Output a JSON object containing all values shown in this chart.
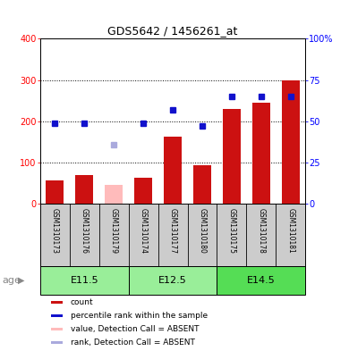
{
  "title": "GDS5642 / 1456261_at",
  "samples": [
    "GSM1310173",
    "GSM1310176",
    "GSM1310179",
    "GSM1310174",
    "GSM1310177",
    "GSM1310180",
    "GSM1310175",
    "GSM1310178",
    "GSM1310181"
  ],
  "count_values": [
    57,
    70,
    null,
    63,
    163,
    93,
    230,
    245,
    300
  ],
  "absent_count_values": [
    null,
    null,
    47,
    null,
    null,
    null,
    null,
    null,
    null
  ],
  "rank_values": [
    49,
    49,
    null,
    49,
    57,
    47,
    65,
    65,
    65
  ],
  "absent_rank_values": [
    null,
    null,
    36,
    null,
    null,
    null,
    null,
    null,
    null
  ],
  "age_groups": [
    {
      "label": "E11.5",
      "start": 0,
      "end": 3
    },
    {
      "label": "E12.5",
      "start": 3,
      "end": 6
    },
    {
      "label": "E14.5",
      "start": 6,
      "end": 9
    }
  ],
  "ylim_left": [
    0,
    400
  ],
  "ylim_right": [
    0,
    100
  ],
  "yticks_left": [
    0,
    100,
    200,
    300,
    400
  ],
  "yticks_right": [
    0,
    25,
    50,
    75,
    100
  ],
  "ytick_labels_left": [
    "0",
    "100",
    "200",
    "300",
    "400"
  ],
  "ytick_labels_right": [
    "0",
    "25",
    "50",
    "75",
    "100%"
  ],
  "bar_color": "#cc1111",
  "absent_bar_color": "#ffbbbb",
  "rank_dot_color": "#1111cc",
  "absent_rank_dot_color": "#aaaadd",
  "bg_plot": "#ffffff",
  "bg_sample_row": "#cccccc",
  "bg_age_row_light": "#99ee99",
  "bg_age_row_dark": "#55dd55",
  "legend_items": [
    {
      "label": "count",
      "color": "#cc1111"
    },
    {
      "label": "percentile rank within the sample",
      "color": "#1111cc"
    },
    {
      "label": "value, Detection Call = ABSENT",
      "color": "#ffbbbb"
    },
    {
      "label": "rank, Detection Call = ABSENT",
      "color": "#aaaadd"
    }
  ]
}
